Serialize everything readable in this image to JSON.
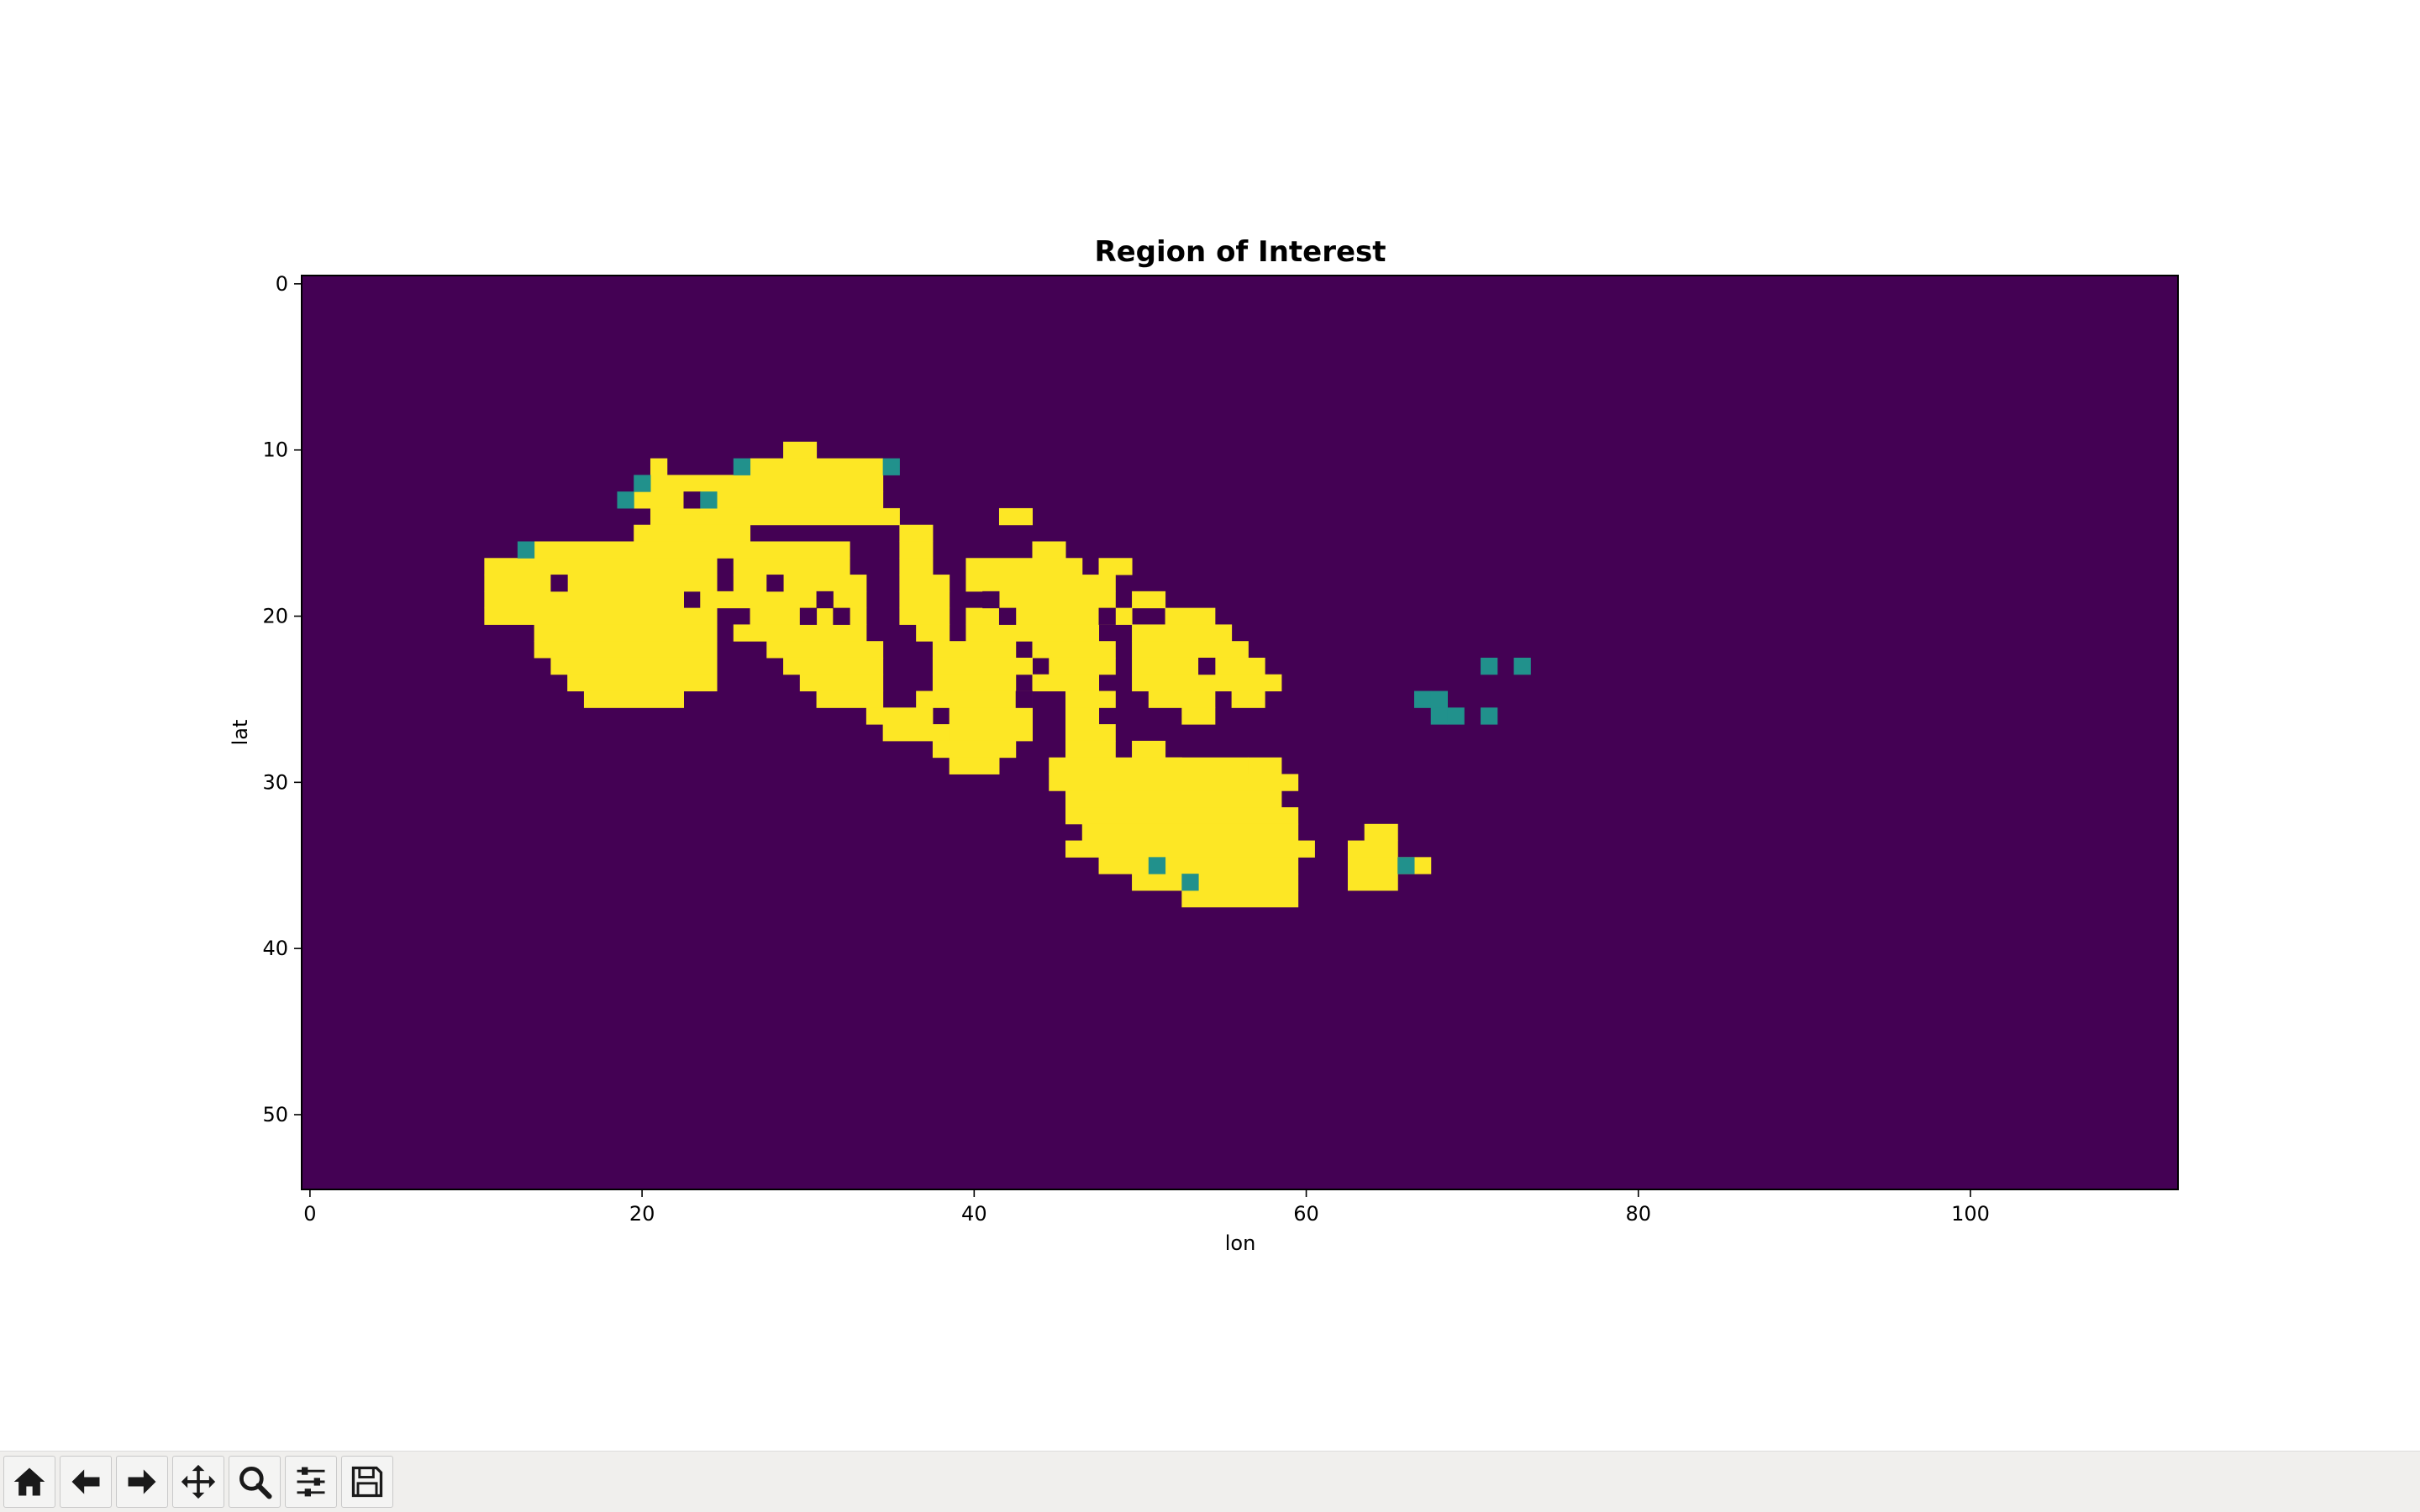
{
  "window": {
    "toolbar": [
      {
        "name": "home-icon"
      },
      {
        "name": "back-icon"
      },
      {
        "name": "forward-icon"
      },
      {
        "name": "pan-icon"
      },
      {
        "name": "zoom-icon"
      },
      {
        "name": "configure-subplots-icon"
      },
      {
        "name": "save-icon"
      }
    ]
  },
  "chart_data": {
    "type": "heatmap",
    "title": "Region of Interest",
    "xlabel": "lon",
    "ylabel": "lat",
    "xlim": [
      -0.5,
      112.5
    ],
    "ylim": [
      54.5,
      -0.5
    ],
    "xticks": [
      0,
      20,
      40,
      60,
      80,
      100
    ],
    "yticks": [
      0,
      10,
      20,
      30,
      40,
      50
    ],
    "legend": "none",
    "colors": {
      "0": "#440154",
      "1": "#21918c",
      "2": "#fde725"
    },
    "categories_description": "cell value 0 background, 1 teal, 2 yellow",
    "grid": false,
    "region_value2_rows": [
      [
        10,
        [
          [
            29,
            30
          ]
        ]
      ],
      [
        11,
        [
          [
            21,
            21
          ],
          [
            27,
            34
          ]
        ]
      ],
      [
        12,
        [
          [
            21,
            34
          ]
        ]
      ],
      [
        13,
        [
          [
            20,
            22
          ],
          [
            25,
            34
          ]
        ]
      ],
      [
        14,
        [
          [
            21,
            35
          ],
          [
            42,
            43
          ]
        ]
      ],
      [
        15,
        [
          [
            20,
            26
          ],
          [
            36,
            37
          ]
        ]
      ],
      [
        16,
        [
          [
            14,
            32
          ],
          [
            36,
            37
          ],
          [
            44,
            45
          ]
        ]
      ],
      [
        17,
        [
          [
            11,
            24
          ],
          [
            26,
            32
          ],
          [
            36,
            37
          ],
          [
            40,
            46
          ],
          [
            48,
            49
          ]
        ]
      ],
      [
        18,
        [
          [
            11,
            24
          ],
          [
            26,
            33
          ],
          [
            36,
            38
          ],
          [
            40,
            48
          ]
        ]
      ],
      [
        19,
        [
          [
            11,
            22
          ],
          [
            24,
            33
          ],
          [
            36,
            38
          ],
          [
            42,
            48
          ],
          [
            50,
            51
          ]
        ]
      ],
      [
        20,
        [
          [
            11,
            24
          ],
          [
            27,
            33
          ],
          [
            36,
            38
          ],
          [
            40,
            49
          ],
          [
            52,
            54
          ]
        ]
      ],
      [
        21,
        [
          [
            14,
            24
          ],
          [
            26,
            33
          ],
          [
            37,
            38
          ],
          [
            40,
            47
          ],
          [
            50,
            55
          ]
        ]
      ],
      [
        22,
        [
          [
            14,
            24
          ],
          [
            28,
            34
          ],
          [
            38,
            42
          ],
          [
            44,
            48
          ],
          [
            50,
            56
          ]
        ]
      ],
      [
        23,
        [
          [
            15,
            24
          ],
          [
            29,
            34
          ],
          [
            38,
            43
          ],
          [
            45,
            48
          ],
          [
            50,
            57
          ]
        ]
      ],
      [
        24,
        [
          [
            16,
            24
          ],
          [
            30,
            34
          ],
          [
            38,
            42
          ],
          [
            44,
            47
          ],
          [
            50,
            58
          ]
        ]
      ],
      [
        25,
        [
          [
            17,
            22
          ],
          [
            31,
            34
          ],
          [
            37,
            43
          ],
          [
            46,
            48
          ],
          [
            51,
            54
          ],
          [
            56,
            57
          ]
        ]
      ],
      [
        26,
        [
          [
            34,
            37
          ],
          [
            39,
            43
          ],
          [
            46,
            47
          ],
          [
            53,
            54
          ]
        ]
      ],
      [
        27,
        [
          [
            35,
            38
          ],
          [
            39,
            43
          ],
          [
            46,
            48
          ]
        ]
      ],
      [
        28,
        [
          [
            38,
            42
          ],
          [
            46,
            48
          ],
          [
            50,
            51
          ]
        ]
      ],
      [
        29,
        [
          [
            39,
            41
          ],
          [
            45,
            52
          ],
          [
            52,
            56
          ],
          [
            57,
            58
          ]
        ]
      ],
      [
        30,
        [
          [
            45,
            57
          ],
          [
            58,
            59
          ]
        ]
      ],
      [
        31,
        [
          [
            46,
            58
          ]
        ]
      ],
      [
        32,
        [
          [
            46,
            59
          ]
        ]
      ],
      [
        33,
        [
          [
            47,
            59
          ],
          [
            64,
            65
          ]
        ]
      ],
      [
        34,
        [
          [
            46,
            60
          ],
          [
            63,
            65
          ]
        ]
      ],
      [
        35,
        [
          [
            48,
            59
          ],
          [
            63,
            67
          ]
        ]
      ],
      [
        36,
        [
          [
            50,
            59
          ],
          [
            63,
            65
          ]
        ]
      ],
      [
        37,
        [
          [
            53,
            59
          ]
        ]
      ]
    ],
    "region_value1_cells": [
      [
        26,
        11
      ],
      [
        35,
        11
      ],
      [
        20,
        12
      ],
      [
        19,
        13
      ],
      [
        24,
        13
      ],
      [
        13,
        16
      ],
      [
        71,
        23
      ],
      [
        73,
        23
      ],
      [
        67,
        25
      ],
      [
        68,
        25
      ],
      [
        68,
        26
      ],
      [
        69,
        26
      ],
      [
        71,
        26
      ],
      [
        51,
        35
      ],
      [
        66,
        35
      ],
      [
        53,
        36
      ]
    ],
    "region_value0_holes": [
      [
        23,
        13
      ],
      [
        15,
        18
      ],
      [
        28,
        18
      ],
      [
        30,
        20
      ],
      [
        31,
        19
      ],
      [
        32,
        20
      ],
      [
        41,
        19
      ],
      [
        42,
        20
      ],
      [
        48,
        20
      ],
      [
        54,
        23
      ],
      [
        43,
        25
      ]
    ]
  }
}
